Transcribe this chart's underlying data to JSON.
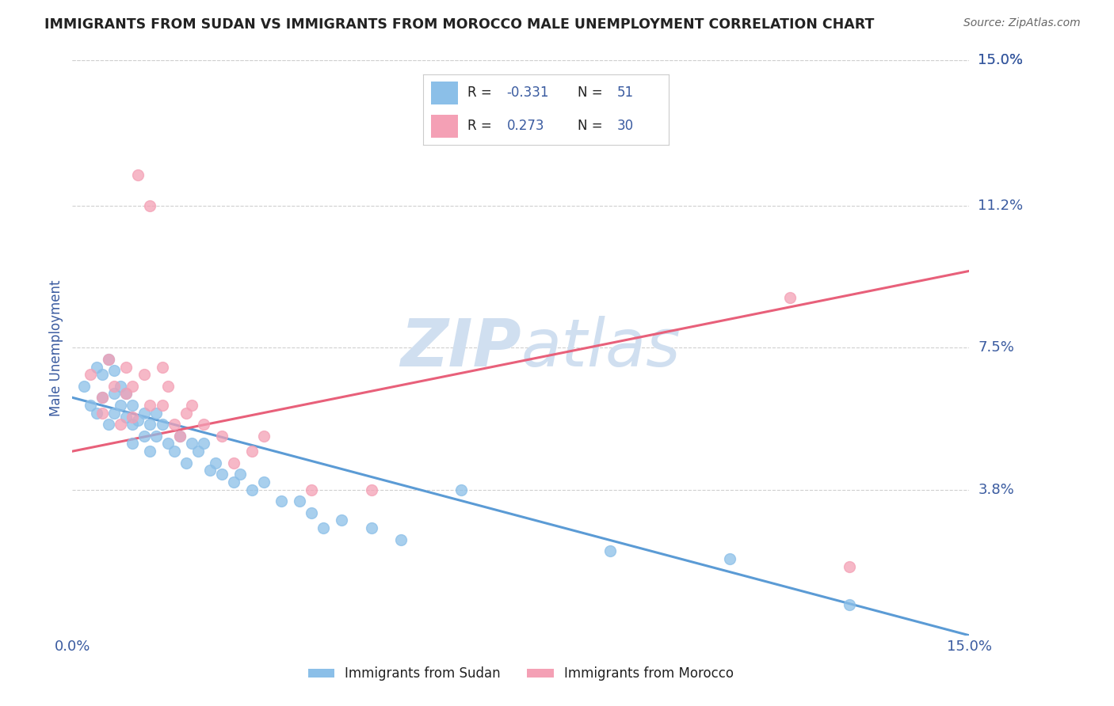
{
  "title": "IMMIGRANTS FROM SUDAN VS IMMIGRANTS FROM MOROCCO MALE UNEMPLOYMENT CORRELATION CHART",
  "source": "Source: ZipAtlas.com",
  "ylabel": "Male Unemployment",
  "xlim": [
    0,
    0.15
  ],
  "ylim": [
    0,
    0.15
  ],
  "ytick_vals": [
    0.15,
    0.112,
    0.075,
    0.038
  ],
  "ytick_labels": [
    "15.0%",
    "11.2%",
    "7.5%",
    "3.8%"
  ],
  "background_color": "#ffffff",
  "grid_color": "#d0d0d0",
  "sudan_color": "#8bbfe8",
  "morocco_color": "#f4a0b5",
  "sudan_line_color": "#5b9bd5",
  "morocco_line_color": "#e8607a",
  "watermark_color": "#d0dff0",
  "title_color": "#222222",
  "axis_label_color": "#3a5ba0",
  "tick_label_color": "#3a5ba0",
  "sudan_R": -0.331,
  "sudan_N": 51,
  "morocco_R": 0.273,
  "morocco_N": 30,
  "sudan_line_x0": 0.0,
  "sudan_line_y0": 0.062,
  "sudan_line_x1": 0.15,
  "sudan_line_y1": 0.0,
  "morocco_line_x0": 0.0,
  "morocco_line_y0": 0.048,
  "morocco_line_x1": 0.15,
  "morocco_line_y1": 0.095,
  "sudan_scatter_x": [
    0.002,
    0.003,
    0.004,
    0.004,
    0.005,
    0.005,
    0.006,
    0.006,
    0.007,
    0.007,
    0.007,
    0.008,
    0.008,
    0.009,
    0.009,
    0.01,
    0.01,
    0.01,
    0.011,
    0.012,
    0.012,
    0.013,
    0.013,
    0.014,
    0.014,
    0.015,
    0.016,
    0.017,
    0.018,
    0.019,
    0.02,
    0.021,
    0.022,
    0.023,
    0.024,
    0.025,
    0.027,
    0.028,
    0.03,
    0.032,
    0.035,
    0.038,
    0.04,
    0.042,
    0.045,
    0.05,
    0.055,
    0.065,
    0.09,
    0.11,
    0.13
  ],
  "sudan_scatter_y": [
    0.065,
    0.06,
    0.07,
    0.058,
    0.068,
    0.062,
    0.055,
    0.072,
    0.063,
    0.069,
    0.058,
    0.065,
    0.06,
    0.057,
    0.063,
    0.055,
    0.06,
    0.05,
    0.056,
    0.058,
    0.052,
    0.048,
    0.055,
    0.058,
    0.052,
    0.055,
    0.05,
    0.048,
    0.052,
    0.045,
    0.05,
    0.048,
    0.05,
    0.043,
    0.045,
    0.042,
    0.04,
    0.042,
    0.038,
    0.04,
    0.035,
    0.035,
    0.032,
    0.028,
    0.03,
    0.028,
    0.025,
    0.038,
    0.022,
    0.02,
    0.008
  ],
  "morocco_scatter_x": [
    0.003,
    0.005,
    0.005,
    0.006,
    0.007,
    0.008,
    0.009,
    0.009,
    0.01,
    0.01,
    0.011,
    0.012,
    0.013,
    0.013,
    0.015,
    0.015,
    0.016,
    0.017,
    0.018,
    0.019,
    0.02,
    0.022,
    0.025,
    0.027,
    0.03,
    0.032,
    0.04,
    0.05,
    0.12,
    0.13
  ],
  "morocco_scatter_y": [
    0.068,
    0.058,
    0.062,
    0.072,
    0.065,
    0.055,
    0.07,
    0.063,
    0.065,
    0.057,
    0.12,
    0.068,
    0.06,
    0.112,
    0.07,
    0.06,
    0.065,
    0.055,
    0.052,
    0.058,
    0.06,
    0.055,
    0.052,
    0.045,
    0.048,
    0.052,
    0.038,
    0.038,
    0.088,
    0.018
  ]
}
